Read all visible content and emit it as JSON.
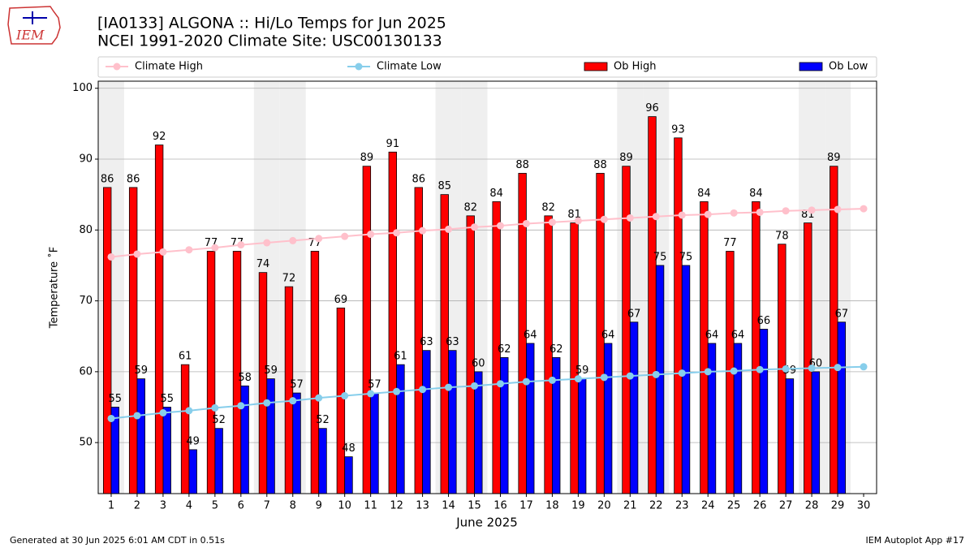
{
  "chart_data": {
    "type": "bar",
    "title": "[IA0133] ALGONA :: Hi/Lo Temps for Jun 2025",
    "subtitle": "NCEI 1991-2020 Climate Site: USC00130133",
    "xlabel": "June 2025",
    "ylabel": "Temperature ˚F",
    "x": [
      1,
      2,
      3,
      4,
      5,
      6,
      7,
      8,
      9,
      10,
      11,
      12,
      13,
      14,
      15,
      16,
      17,
      18,
      19,
      20,
      21,
      22,
      23,
      24,
      25,
      26,
      27,
      28,
      29,
      30
    ],
    "series": [
      {
        "name": "Climate High",
        "type": "line",
        "color": "#ffc0cb",
        "values": [
          76.2,
          76.6,
          76.9,
          77.2,
          77.5,
          77.9,
          78.2,
          78.5,
          78.8,
          79.1,
          79.4,
          79.6,
          79.9,
          80.1,
          80.4,
          80.6,
          80.9,
          81.1,
          81.3,
          81.5,
          81.7,
          81.9,
          82.1,
          82.2,
          82.4,
          82.5,
          82.7,
          82.8,
          82.9,
          83.0
        ]
      },
      {
        "name": "Climate Low",
        "type": "line",
        "color": "#87ceeb",
        "values": [
          53.4,
          53.8,
          54.2,
          54.5,
          54.9,
          55.2,
          55.6,
          55.9,
          56.3,
          56.6,
          56.9,
          57.2,
          57.5,
          57.8,
          58.0,
          58.3,
          58.6,
          58.8,
          59.0,
          59.2,
          59.4,
          59.6,
          59.8,
          60.0,
          60.1,
          60.3,
          60.4,
          60.5,
          60.6,
          60.7
        ]
      },
      {
        "name": "Ob High",
        "type": "bar",
        "color": "#ff0000",
        "values": [
          86,
          86,
          92,
          61,
          77,
          77,
          74,
          72,
          77,
          69,
          89,
          91,
          86,
          85,
          82,
          84,
          88,
          82,
          81,
          88,
          89,
          96,
          93,
          84,
          77,
          84,
          78,
          81,
          89,
          null
        ]
      },
      {
        "name": "Ob Low",
        "type": "bar",
        "color": "#0000ff",
        "values": [
          55,
          59,
          55,
          49,
          52,
          58,
          59,
          57,
          52,
          48,
          57,
          61,
          63,
          63,
          60,
          62,
          64,
          62,
          59,
          64,
          67,
          75,
          75,
          64,
          64,
          66,
          59,
          60,
          67,
          null
        ]
      }
    ],
    "shaded_days": [
      1,
      7,
      8,
      14,
      15,
      21,
      22,
      28,
      29
    ],
    "xlim": [
      0.5,
      30.5
    ],
    "ylim": [
      42.8,
      101.0
    ],
    "xticks": [
      1,
      2,
      3,
      4,
      5,
      6,
      7,
      8,
      9,
      10,
      11,
      12,
      13,
      14,
      15,
      16,
      17,
      18,
      19,
      20,
      21,
      22,
      23,
      24,
      25,
      26,
      27,
      28,
      29,
      30
    ],
    "yticks": [
      50,
      60,
      70,
      80,
      90,
      100
    ],
    "grid": true
  },
  "logo_text": "IEM",
  "footer_left": "Generated at 30 Jun 2025 6:01 AM CDT in 0.51s",
  "footer_right": "IEM Autoplot App #17"
}
